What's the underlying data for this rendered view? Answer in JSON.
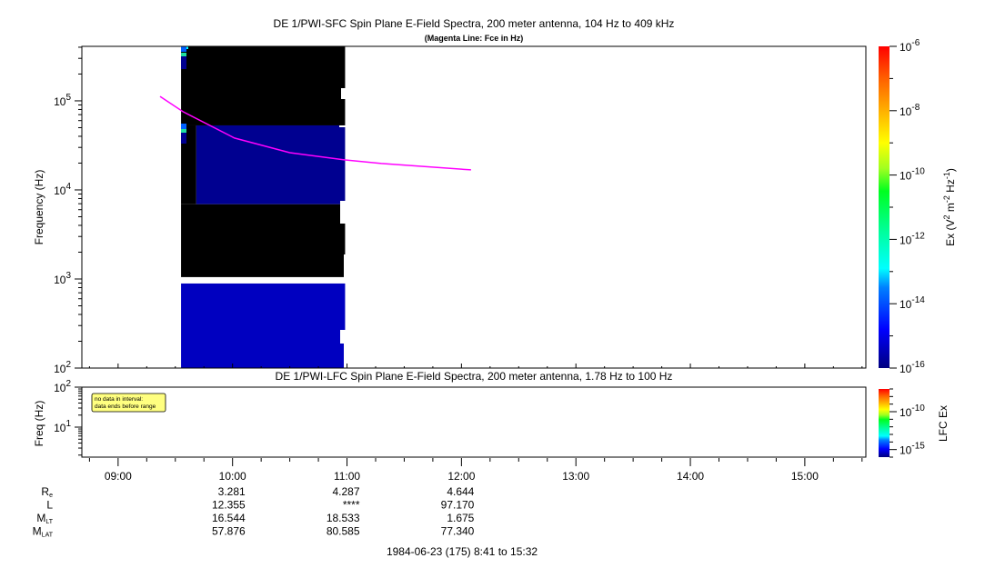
{
  "top_panel": {
    "title": "DE 1/PWI-SFC  Spin Plane E-Field Spectra, 200 meter antenna, 104 Hz to 409 kHz",
    "subtitle": "(Magenta Line: Fce in Hz)",
    "ylabel": "Frequency (Hz)",
    "yticks": [
      {
        "base": "10",
        "exp": "2"
      },
      {
        "base": "10",
        "exp": "3"
      },
      {
        "base": "10",
        "exp": "4"
      },
      {
        "base": "10",
        "exp": "5"
      }
    ],
    "colorbar": {
      "label_main": "Ex (V",
      "label_sup1": "2",
      "label_mid": " m",
      "label_sup2": "-2",
      "label_hz": " Hz",
      "label_sup3": "-1",
      "label_end": ")",
      "ticks": [
        {
          "base": "10",
          "exp": "-16"
        },
        {
          "base": "10",
          "exp": "-14"
        },
        {
          "base": "10",
          "exp": "-12"
        },
        {
          "base": "10",
          "exp": "-10"
        },
        {
          "base": "10",
          "exp": "-8"
        },
        {
          "base": "10",
          "exp": "-6"
        }
      ]
    }
  },
  "bottom_panel": {
    "title": "DE 1/PWI-LFC  Spin Plane E-Field Spectra, 200 meter antenna, 1.78 Hz to 100 Hz",
    "ylabel": "Freq (Hz)",
    "yticks": [
      {
        "base": "10",
        "exp": "1"
      },
      {
        "base": "10",
        "exp": "2"
      }
    ],
    "note_line1": "no data in interval:",
    "note_line2": "data ends before range",
    "colorbar": {
      "label": "LFC Ex",
      "ticks": [
        {
          "base": "10",
          "exp": "-15"
        },
        {
          "base": "10",
          "exp": "-10"
        }
      ]
    }
  },
  "xaxis": {
    "ticks": [
      "09:00",
      "10:00",
      "11:00",
      "12:00",
      "13:00",
      "14:00",
      "15:00"
    ]
  },
  "ephemeris": {
    "rows": [
      {
        "label": "R",
        "sub": "e",
        "values": [
          "3.281",
          "4.287",
          "4.644"
        ]
      },
      {
        "label": "L",
        "sub": "",
        "values": [
          "12.355",
          "****",
          "97.170"
        ]
      },
      {
        "label": "M",
        "sub": "LT",
        "values": [
          "16.544",
          "18.533",
          "1.675"
        ]
      },
      {
        "label": "M",
        "sub": "LAT",
        "values": [
          "57.876",
          "80.585",
          "77.340"
        ]
      }
    ]
  },
  "footer": "1984-06-23 (175) 8:41 to 15:32",
  "chart_data": [
    {
      "type": "heatmap",
      "title": "DE 1/PWI-SFC  Spin Plane E-Field Spectra, 200 meter antenna, 104 Hz to 409 kHz",
      "subtitle": "(Magenta Line: Fce in Hz)",
      "xlabel": "",
      "ylabel": "Frequency (Hz)",
      "xlim": [
        "08:41",
        "15:32"
      ],
      "ylim": [
        100,
        409000
      ],
      "yscale": "log",
      "colorbar": {
        "label": "Ex (V^2 m^-2 Hz^-1)",
        "range": [
          1e-16,
          1e-06
        ],
        "scale": "log",
        "colormap": "rainbow"
      },
      "blocks": [
        {
          "t0": "09:33",
          "t1": "10:59",
          "f0": 53000,
          "f1": 409000,
          "color": "#000000"
        },
        {
          "t0": "09:33",
          "t1": "09:41",
          "f0": 6900,
          "f1": 53000,
          "color": "#000000"
        },
        {
          "t0": "09:41",
          "t1": "10:59",
          "f0": 6900,
          "f1": 53000,
          "color": "#000090",
          "value": 1e-16
        },
        {
          "t0": "09:33",
          "t1": "10:59",
          "f0": 1050,
          "f1": 6900,
          "color": "#000000"
        },
        {
          "t0": "09:33",
          "t1": "10:59",
          "f0": 100,
          "f1": 890,
          "color": "#0000c0",
          "value": 3e-16
        }
      ],
      "series": [
        {
          "name": "Fce",
          "color": "#ff00ff",
          "x": [
            "09:22",
            "09:34",
            "10:01",
            "10:30",
            "10:59",
            "11:18",
            "12:05"
          ],
          "y": [
            112000,
            75500,
            38200,
            26200,
            21700,
            19800,
            16800
          ]
        }
      ]
    },
    {
      "type": "heatmap",
      "title": "DE 1/PWI-LFC  Spin Plane E-Field Spectra, 200 meter antenna, 1.78 Hz to 100 Hz",
      "ylabel": "Freq (Hz)",
      "xlim": [
        "08:41",
        "15:32"
      ],
      "ylim": [
        1.78,
        100
      ],
      "yscale": "log",
      "colorbar": {
        "label": "LFC Ex",
        "range": [
          1e-16,
          1e-07
        ],
        "scale": "log"
      },
      "annotation": "no data in interval: data ends before range"
    }
  ]
}
